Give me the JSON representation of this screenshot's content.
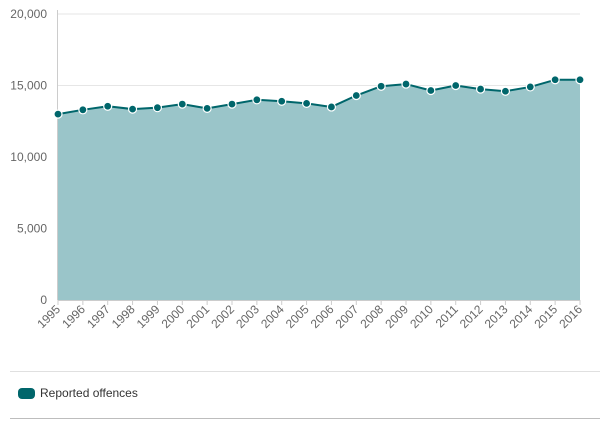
{
  "chart_data": {
    "type": "area",
    "title": "",
    "xlabel": "",
    "ylabel": "",
    "ylim": [
      0,
      20000
    ],
    "yticks": [
      "0",
      "5,000",
      "10,000",
      "15,000",
      "20,000"
    ],
    "ytick_values": [
      0,
      5000,
      10000,
      15000,
      20000
    ],
    "categories": [
      "1995",
      "1996",
      "1997",
      "1998",
      "1999",
      "2000",
      "2001",
      "2002",
      "2003",
      "2004",
      "2005",
      "2006",
      "2007",
      "2008",
      "2009",
      "2010",
      "2011",
      "2012",
      "2013",
      "2014",
      "2015",
      "2016"
    ],
    "series": [
      {
        "name": "Reported offences",
        "values": [
          13000,
          13300,
          13550,
          13350,
          13450,
          13700,
          13400,
          13700,
          14000,
          13900,
          13750,
          13500,
          14300,
          14950,
          15100,
          14650,
          15000,
          14750,
          14600,
          14900,
          15400,
          15400
        ]
      }
    ],
    "grid": "horizontal",
    "legend_position": "bottom-left",
    "colors": {
      "line": "#00666b",
      "fill": "#9ac5c9",
      "marker_stroke": "#ffffff",
      "grid": "#e6e6e6",
      "axis": "#cccccc"
    }
  }
}
